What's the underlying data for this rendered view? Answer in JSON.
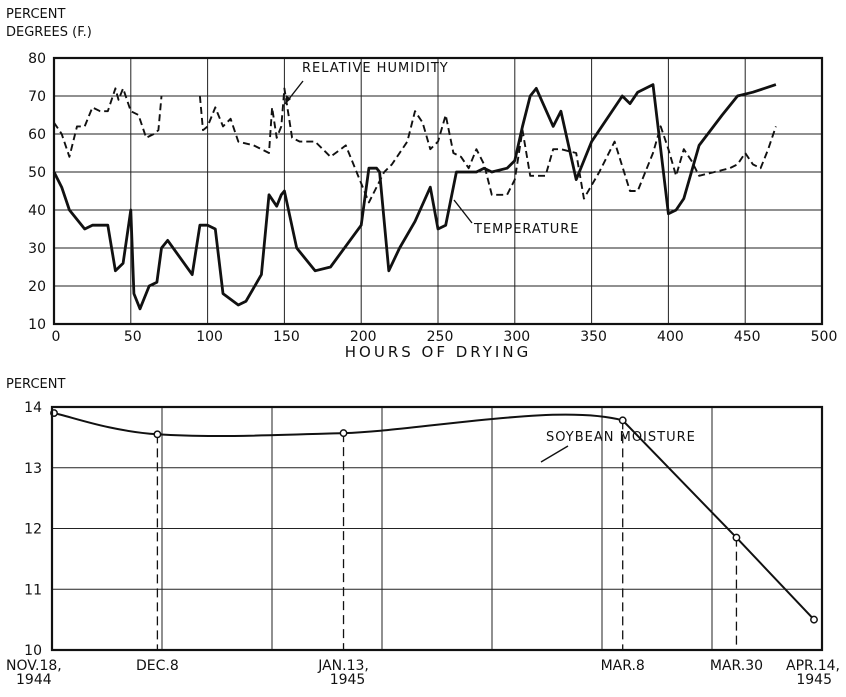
{
  "chart_data": [
    {
      "type": "line",
      "ylabel_lines": [
        "PERCENT",
        "DEGREES (F.)"
      ],
      "xlabel": "HOURS OF DRYING",
      "xlim": [
        0,
        500
      ],
      "ylim": [
        10,
        80
      ],
      "x_ticks": [
        0,
        50,
        100,
        150,
        200,
        250,
        300,
        350,
        400,
        450,
        500
      ],
      "y_ticks": [
        10,
        20,
        30,
        40,
        50,
        60,
        70,
        80
      ],
      "grid": true,
      "series": [
        {
          "name": "TEMPERATURE",
          "style": "solid",
          "segments": [
            [
              [
                0,
                50
              ],
              [
                5,
                46
              ],
              [
                10,
                40
              ],
              [
                20,
                35
              ],
              [
                25,
                36
              ],
              [
                35,
                36
              ],
              [
                40,
                24
              ],
              [
                45,
                26
              ],
              [
                50,
                40
              ],
              [
                52,
                18
              ],
              [
                56,
                14
              ],
              [
                62,
                20
              ],
              [
                67,
                21
              ],
              [
                70,
                30
              ],
              [
                74,
                32
              ],
              [
                90,
                23
              ],
              [
                95,
                36
              ],
              [
                100,
                36
              ],
              [
                105,
                35
              ],
              [
                110,
                18
              ],
              [
                120,
                15
              ],
              [
                125,
                16
              ],
              [
                135,
                23
              ],
              [
                140,
                44
              ],
              [
                145,
                41
              ],
              [
                148,
                44
              ],
              [
                150,
                45
              ],
              [
                158,
                30
              ],
              [
                170,
                24
              ],
              [
                180,
                25
              ],
              [
                200,
                36
              ],
              [
                205,
                51
              ],
              [
                210,
                51
              ],
              [
                212,
                50
              ],
              [
                218,
                24
              ],
              [
                225,
                30
              ],
              [
                235,
                37
              ],
              [
                245,
                46
              ],
              [
                250,
                35
              ],
              [
                255,
                36
              ],
              [
                262,
                50
              ],
              [
                275,
                50
              ],
              [
                280,
                51
              ],
              [
                285,
                50
              ],
              [
                295,
                51
              ],
              [
                300,
                53
              ],
              [
                305,
                62
              ],
              [
                310,
                70
              ],
              [
                314,
                72
              ],
              [
                325,
                62
              ],
              [
                330,
                66
              ],
              [
                340,
                48
              ],
              [
                350,
                58
              ],
              [
                370,
                70
              ],
              [
                375,
                68
              ],
              [
                380,
                71
              ],
              [
                390,
                73
              ],
              [
                400,
                39
              ],
              [
                405,
                40
              ],
              [
                410,
                43
              ],
              [
                420,
                57
              ],
              [
                435,
                65
              ],
              [
                445,
                70
              ],
              [
                455,
                71
              ],
              [
                470,
                73
              ]
            ]
          ]
        },
        {
          "name": "RELATIVE HUMIDITY",
          "style": "dashed",
          "segments": [
            [
              [
                0,
                63
              ],
              [
                5,
                60
              ],
              [
                10,
                54
              ],
              [
                15,
                62
              ],
              [
                20,
                62
              ],
              [
                25,
                67
              ],
              [
                30,
                66
              ],
              [
                35,
                66
              ],
              [
                40,
                72
              ],
              [
                42,
                69
              ],
              [
                45,
                72
              ],
              [
                50,
                66
              ],
              [
                55,
                65
              ],
              [
                60,
                59
              ],
              [
                65,
                60
              ],
              [
                68,
                61
              ],
              [
                70,
                70
              ]
            ],
            [
              [
                95,
                70
              ],
              [
                97,
                61
              ],
              [
                100,
                62
              ],
              [
                105,
                67
              ],
              [
                110,
                62
              ],
              [
                115,
                64
              ],
              [
                120,
                58
              ],
              [
                130,
                57
              ],
              [
                135,
                56
              ],
              [
                140,
                55
              ],
              [
                142,
                67
              ],
              [
                145,
                59
              ],
              [
                148,
                62
              ],
              [
                150,
                72
              ],
              [
                155,
                59
              ],
              [
                160,
                58
              ],
              [
                170,
                58
              ],
              [
                180,
                54
              ],
              [
                190,
                57
              ],
              [
                200,
                47
              ],
              [
                205,
                42
              ],
              [
                215,
                50
              ],
              [
                220,
                52
              ],
              [
                230,
                58
              ],
              [
                235,
                66
              ],
              [
                240,
                63
              ],
              [
                245,
                56
              ],
              [
                250,
                58
              ],
              [
                255,
                65
              ],
              [
                260,
                55
              ],
              [
                265,
                54
              ],
              [
                270,
                51
              ],
              [
                275,
                56
              ],
              [
                280,
                52
              ],
              [
                285,
                44
              ],
              [
                295,
                44
              ],
              [
                300,
                48
              ],
              [
                305,
                61
              ],
              [
                310,
                49
              ],
              [
                320,
                49
              ],
              [
                325,
                56
              ],
              [
                330,
                56
              ],
              [
                340,
                55
              ],
              [
                345,
                43
              ],
              [
                355,
                50
              ],
              [
                365,
                58
              ],
              [
                375,
                45
              ],
              [
                380,
                45
              ],
              [
                390,
                55
              ],
              [
                395,
                62
              ],
              [
                400,
                56
              ],
              [
                405,
                49
              ],
              [
                410,
                56
              ],
              [
                415,
                53
              ],
              [
                420,
                49
              ],
              [
                430,
                50
              ],
              [
                440,
                51
              ],
              [
                445,
                52
              ],
              [
                450,
                55
              ],
              [
                455,
                52
              ],
              [
                460,
                51
              ],
              [
                465,
                56
              ],
              [
                470,
                62
              ]
            ]
          ]
        }
      ],
      "annotations": [
        {
          "text": "RELATIVE HUMIDITY",
          "series": "RELATIVE HUMIDITY"
        },
        {
          "text": "TEMPERATURE",
          "series": "TEMPERATURE"
        }
      ]
    },
    {
      "type": "line",
      "ylabel": "PERCENT",
      "ylim": [
        10,
        14
      ],
      "y_ticks": [
        10,
        11,
        12,
        13,
        14
      ],
      "grid": true,
      "x_labels": [
        {
          "line1": "NOV.18,",
          "line2": "1944",
          "day": 0
        },
        {
          "line1": "DEC.8",
          "line2": "",
          "day": 20
        },
        {
          "line1": "JAN.13,",
          "line2": "1945",
          "day": 56
        },
        {
          "line1": "MAR.8",
          "line2": "",
          "day": 110
        },
        {
          "line1": "MAR.30",
          "line2": "",
          "day": 132
        },
        {
          "line1": "APR.14,",
          "line2": "1945",
          "day": 147
        }
      ],
      "x_grid_days": [
        0,
        21,
        42,
        63,
        84,
        105,
        126,
        147
      ],
      "series": [
        {
          "name": "SOYBEAN MOISTURE",
          "points": [
            [
              0,
              13.9
            ],
            [
              20,
              13.55
            ],
            [
              56,
              13.57
            ],
            [
              110,
              13.78
            ],
            [
              132,
              11.85
            ],
            [
              147,
              10.5
            ]
          ]
        }
      ],
      "annotations": [
        {
          "text": "SOYBEAN MOISTURE",
          "series": "SOYBEAN MOISTURE"
        }
      ]
    }
  ]
}
